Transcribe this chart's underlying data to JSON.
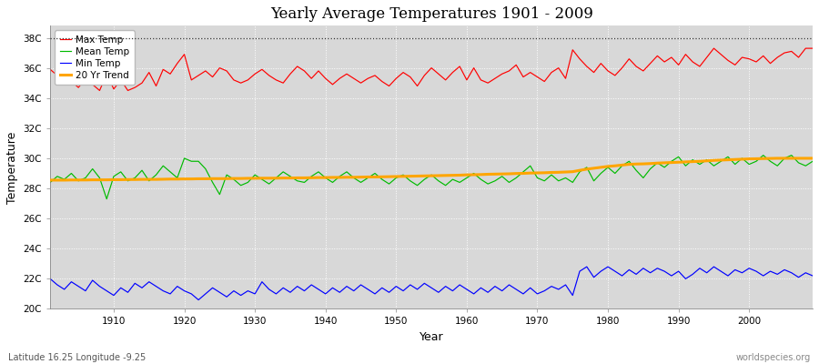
{
  "title": "Yearly Average Temperatures 1901 - 2009",
  "xlabel": "Year",
  "ylabel": "Temperature",
  "footnote_left": "Latitude 16.25 Longitude -9.25",
  "footnote_right": "worldspecies.org",
  "ylim": [
    20,
    38.8
  ],
  "xlim": [
    1901,
    2009
  ],
  "yticks": [
    20,
    22,
    24,
    26,
    28,
    30,
    32,
    34,
    36,
    38
  ],
  "ytick_labels": [
    "20C",
    "22C",
    "24C",
    "26C",
    "28C",
    "30C",
    "32C",
    "34C",
    "36C",
    "38C"
  ],
  "xticks": [
    1910,
    1920,
    1930,
    1940,
    1950,
    1960,
    1970,
    1980,
    1990,
    2000
  ],
  "bg_color": "#d8d8d8",
  "fig_color": "#ffffff",
  "grid_color": "#ffffff",
  "dotted_line_y": 38,
  "legend_labels": [
    "Max Temp",
    "Mean Temp",
    "Min Temp",
    "20 Yr Trend"
  ],
  "legend_colors": [
    "#ff0000",
    "#00bb00",
    "#0000ff",
    "#ffa500"
  ],
  "max_temp": [
    35.9,
    35.5,
    35.3,
    35.1,
    34.7,
    35.3,
    34.9,
    34.5,
    35.6,
    34.6,
    35.2,
    34.5,
    34.7,
    35.0,
    35.7,
    34.8,
    35.9,
    35.6,
    36.3,
    36.9,
    35.2,
    35.5,
    35.8,
    35.4,
    36.0,
    35.8,
    35.2,
    35.0,
    35.2,
    35.6,
    35.9,
    35.5,
    35.2,
    35.0,
    35.6,
    36.1,
    35.8,
    35.3,
    35.8,
    35.3,
    34.9,
    35.3,
    35.6,
    35.3,
    35.0,
    35.3,
    35.5,
    35.1,
    34.8,
    35.3,
    35.7,
    35.4,
    34.8,
    35.5,
    36.0,
    35.6,
    35.2,
    35.7,
    36.1,
    35.2,
    36.0,
    35.2,
    35.0,
    35.3,
    35.6,
    35.8,
    36.2,
    35.4,
    35.7,
    35.4,
    35.1,
    35.7,
    36.0,
    35.3,
    37.2,
    36.6,
    36.1,
    35.7,
    36.3,
    35.8,
    35.5,
    36.0,
    36.6,
    36.1,
    35.8,
    36.3,
    36.8,
    36.4,
    36.7,
    36.2,
    36.9,
    36.4,
    36.1,
    36.7,
    37.3,
    36.9,
    36.5,
    36.2,
    36.7,
    36.6,
    36.4,
    36.8,
    36.3,
    36.7,
    37.0,
    37.1,
    36.7,
    37.3,
    37.3
  ],
  "mean_temp": [
    28.4,
    28.8,
    28.6,
    29.0,
    28.5,
    28.7,
    29.3,
    28.7,
    27.3,
    28.8,
    29.1,
    28.5,
    28.7,
    29.2,
    28.5,
    28.9,
    29.5,
    29.1,
    28.7,
    30.0,
    29.8,
    29.8,
    29.3,
    28.4,
    27.6,
    28.9,
    28.6,
    28.2,
    28.4,
    28.9,
    28.6,
    28.3,
    28.7,
    29.1,
    28.8,
    28.5,
    28.4,
    28.8,
    29.1,
    28.7,
    28.4,
    28.8,
    29.1,
    28.7,
    28.4,
    28.7,
    29.0,
    28.6,
    28.3,
    28.7,
    28.9,
    28.5,
    28.2,
    28.6,
    28.9,
    28.5,
    28.2,
    28.6,
    28.4,
    28.7,
    29.0,
    28.6,
    28.3,
    28.5,
    28.8,
    28.4,
    28.7,
    29.1,
    29.5,
    28.7,
    28.5,
    28.9,
    28.5,
    28.7,
    28.4,
    29.1,
    29.4,
    28.5,
    29.0,
    29.4,
    29.0,
    29.5,
    29.8,
    29.2,
    28.7,
    29.3,
    29.7,
    29.4,
    29.8,
    30.1,
    29.5,
    29.9,
    29.6,
    29.9,
    29.5,
    29.8,
    30.1,
    29.6,
    30.0,
    29.6,
    29.8,
    30.2,
    29.8,
    29.5,
    30.0,
    30.2,
    29.7,
    29.5,
    29.8
  ],
  "min_temp": [
    22.0,
    21.6,
    21.3,
    21.8,
    21.5,
    21.2,
    21.9,
    21.5,
    21.2,
    20.9,
    21.4,
    21.1,
    21.7,
    21.4,
    21.8,
    21.5,
    21.2,
    21.0,
    21.5,
    21.2,
    21.0,
    20.6,
    21.0,
    21.4,
    21.1,
    20.8,
    21.2,
    20.9,
    21.2,
    21.0,
    21.8,
    21.3,
    21.0,
    21.4,
    21.1,
    21.5,
    21.2,
    21.6,
    21.3,
    21.0,
    21.4,
    21.1,
    21.5,
    21.2,
    21.6,
    21.3,
    21.0,
    21.4,
    21.1,
    21.5,
    21.2,
    21.6,
    21.3,
    21.7,
    21.4,
    21.1,
    21.5,
    21.2,
    21.6,
    21.3,
    21.0,
    21.4,
    21.1,
    21.5,
    21.2,
    21.6,
    21.3,
    21.0,
    21.4,
    21.0,
    21.2,
    21.5,
    21.3,
    21.6,
    20.9,
    22.5,
    22.8,
    22.1,
    22.5,
    22.8,
    22.5,
    22.2,
    22.6,
    22.3,
    22.7,
    22.4,
    22.7,
    22.5,
    22.2,
    22.5,
    22.0,
    22.3,
    22.7,
    22.4,
    22.8,
    22.5,
    22.2,
    22.6,
    22.4,
    22.7,
    22.5,
    22.2,
    22.5,
    22.3,
    22.6,
    22.4,
    22.1,
    22.4,
    22.2
  ],
  "trend_temp": [
    28.55,
    28.55,
    28.55,
    28.56,
    28.56,
    28.56,
    28.57,
    28.57,
    28.57,
    28.58,
    28.58,
    28.59,
    28.59,
    28.6,
    28.6,
    28.6,
    28.61,
    28.62,
    28.62,
    28.63,
    28.63,
    28.64,
    28.64,
    28.65,
    28.65,
    28.65,
    28.66,
    28.66,
    28.67,
    28.67,
    28.68,
    28.68,
    28.68,
    28.69,
    28.69,
    28.7,
    28.7,
    28.71,
    28.72,
    28.72,
    28.73,
    28.73,
    28.74,
    28.74,
    28.75,
    28.76,
    28.76,
    28.77,
    28.78,
    28.79,
    28.8,
    28.81,
    28.82,
    28.83,
    28.84,
    28.85,
    28.86,
    28.87,
    28.88,
    28.9,
    28.91,
    28.92,
    28.94,
    28.95,
    28.96,
    28.97,
    28.99,
    29.0,
    29.02,
    29.03,
    29.04,
    29.06,
    29.07,
    29.09,
    29.11,
    29.2,
    29.28,
    29.34,
    29.4,
    29.46,
    29.5,
    29.55,
    29.6,
    29.62,
    29.63,
    29.65,
    29.68,
    29.7,
    29.72,
    29.74,
    29.76,
    29.78,
    29.8,
    29.83,
    29.86,
    29.88,
    29.9,
    29.92,
    29.94,
    29.96,
    29.97,
    29.98,
    29.99,
    30.0,
    30.0,
    30.0,
    30.0,
    30.0,
    30.0
  ]
}
